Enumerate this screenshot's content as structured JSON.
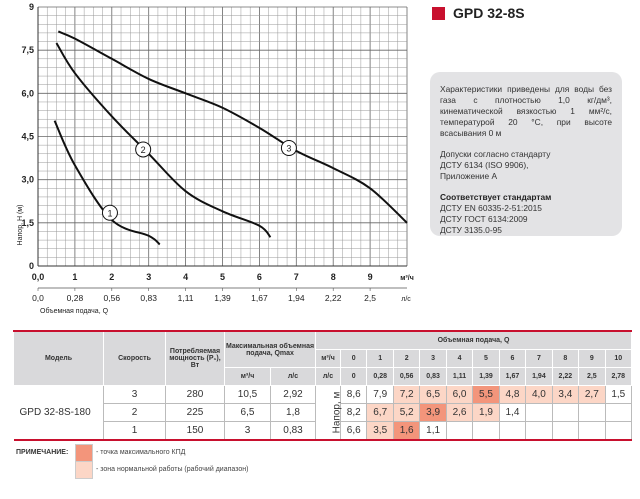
{
  "header": {
    "title": "GPD 32-8S",
    "accent": "#c8102e"
  },
  "info": {
    "p1": "Характеристики приведены для воды без газа с плотностью 1,0 кг/дм³, кинематической вязкостью 1 мм²/с, температурой 20 °С, при высоте всасывания 0 м",
    "p2a": "Допуски согласно стандарту",
    "p2b": "ДСТУ 6134 (ISO 9906),",
    "p2c": "Приложение А",
    "p3title": "Соответствует стандартам",
    "p3a": "ДСТУ EN 60335-2-51:2015",
    "p3b": "ДСТУ ГОСТ 6134:2009",
    "p3c": "ДСТУ 3135.0-95"
  },
  "chart_data": {
    "type": "line",
    "ylabel": "Напор, H (м)",
    "xlabel": "Объемная подача, Q",
    "x_unit": "м³/ч",
    "x2_unit": "л/с",
    "xlim": [
      0,
      10
    ],
    "ylim": [
      0,
      9
    ],
    "x_ticks": [
      "0,0",
      "1",
      "2",
      "3",
      "4",
      "5",
      "6",
      "7",
      "8",
      "9"
    ],
    "x2_ticks": [
      "0,0",
      "0,28",
      "0,56",
      "0,83",
      "1,11",
      "1,39",
      "1,67",
      "1,94",
      "2,22",
      "2,5"
    ],
    "y_ticks": [
      "0",
      "1,5",
      "3,0",
      "4,5",
      "6,0",
      "7,5",
      "9"
    ],
    "grid": true,
    "series": [
      {
        "name": "1",
        "x": [
          0.45,
          1,
          2,
          3,
          3.3
        ],
        "y": [
          5.05,
          3.5,
          1.6,
          1.05,
          0.75
        ],
        "label_at": [
          1.95,
          1.85
        ]
      },
      {
        "name": "2",
        "x": [
          0.5,
          1,
          2,
          3,
          4,
          5,
          6,
          6.3
        ],
        "y": [
          7.75,
          6.7,
          5.2,
          3.9,
          2.6,
          1.9,
          1.4,
          1.0
        ],
        "label_at": [
          2.85,
          4.05
        ]
      },
      {
        "name": "3",
        "x": [
          0.55,
          1,
          2,
          3,
          4,
          5,
          6,
          7,
          8,
          9,
          10
        ],
        "y": [
          8.15,
          7.9,
          7.2,
          6.5,
          6.0,
          5.5,
          4.8,
          4.0,
          3.4,
          2.7,
          1.5
        ],
        "label_at": [
          6.8,
          4.1
        ]
      }
    ]
  },
  "table": {
    "h_model": "Модель",
    "h_speed": "Скорость",
    "h_power": "Потребляемая мощность (P₁), Вт",
    "h_qmax": "Максимальная объемная подача, Qmax",
    "h_m3": "м³/ч",
    "h_ls": "л/с",
    "h_q": "Объемная подача, Q",
    "h_head": "Напор, м",
    "q_m3": [
      "0",
      "1",
      "2",
      "3",
      "4",
      "5",
      "6",
      "7",
      "8",
      "9",
      "10"
    ],
    "q_ls": [
      "0",
      "0,28",
      "0,56",
      "0,83",
      "1,11",
      "1,39",
      "1,67",
      "1,94",
      "2,22",
      "2,5",
      "2,78"
    ],
    "model": "GPD 32-8S-180",
    "rows": [
      {
        "speed": "3",
        "power": "280",
        "qm3": "10,5",
        "qls": "2,92",
        "h": [
          "8,6",
          "7,9",
          "7,2",
          "6,5",
          "6,0",
          "5,5",
          "4,8",
          "4,0",
          "3,4",
          "2,7",
          "1,5"
        ],
        "z": [
          "",
          "",
          "l",
          "l",
          "l",
          "d",
          "l",
          "l",
          "l",
          "l",
          ""
        ]
      },
      {
        "speed": "2",
        "power": "225",
        "qm3": "6,5",
        "qls": "1,8",
        "h": [
          "8,2",
          "6,7",
          "5,2",
          "3,9",
          "2,6",
          "1,9",
          "1,4",
          "",
          "",
          "",
          ""
        ],
        "z": [
          "",
          "l",
          "l",
          "d",
          "l",
          "l",
          "",
          "",
          "",
          "",
          ""
        ]
      },
      {
        "speed": "1",
        "power": "150",
        "qm3": "3",
        "qls": "0,83",
        "h": [
          "6,6",
          "3,5",
          "1,6",
          "1,1",
          "",
          "",
          "",
          "",
          "",
          "",
          ""
        ],
        "z": [
          "",
          "l",
          "d",
          "",
          "",
          "",
          "",
          "",
          "",
          "",
          ""
        ]
      }
    ]
  },
  "note": {
    "label": "ПРИМЕЧАНИЕ:",
    "max": "- точка максимального КПД",
    "zone": "- зона нормальной работы (рабочий диапазон)",
    "color_max": "#f3957b",
    "color_zone": "#fcd6c6"
  }
}
